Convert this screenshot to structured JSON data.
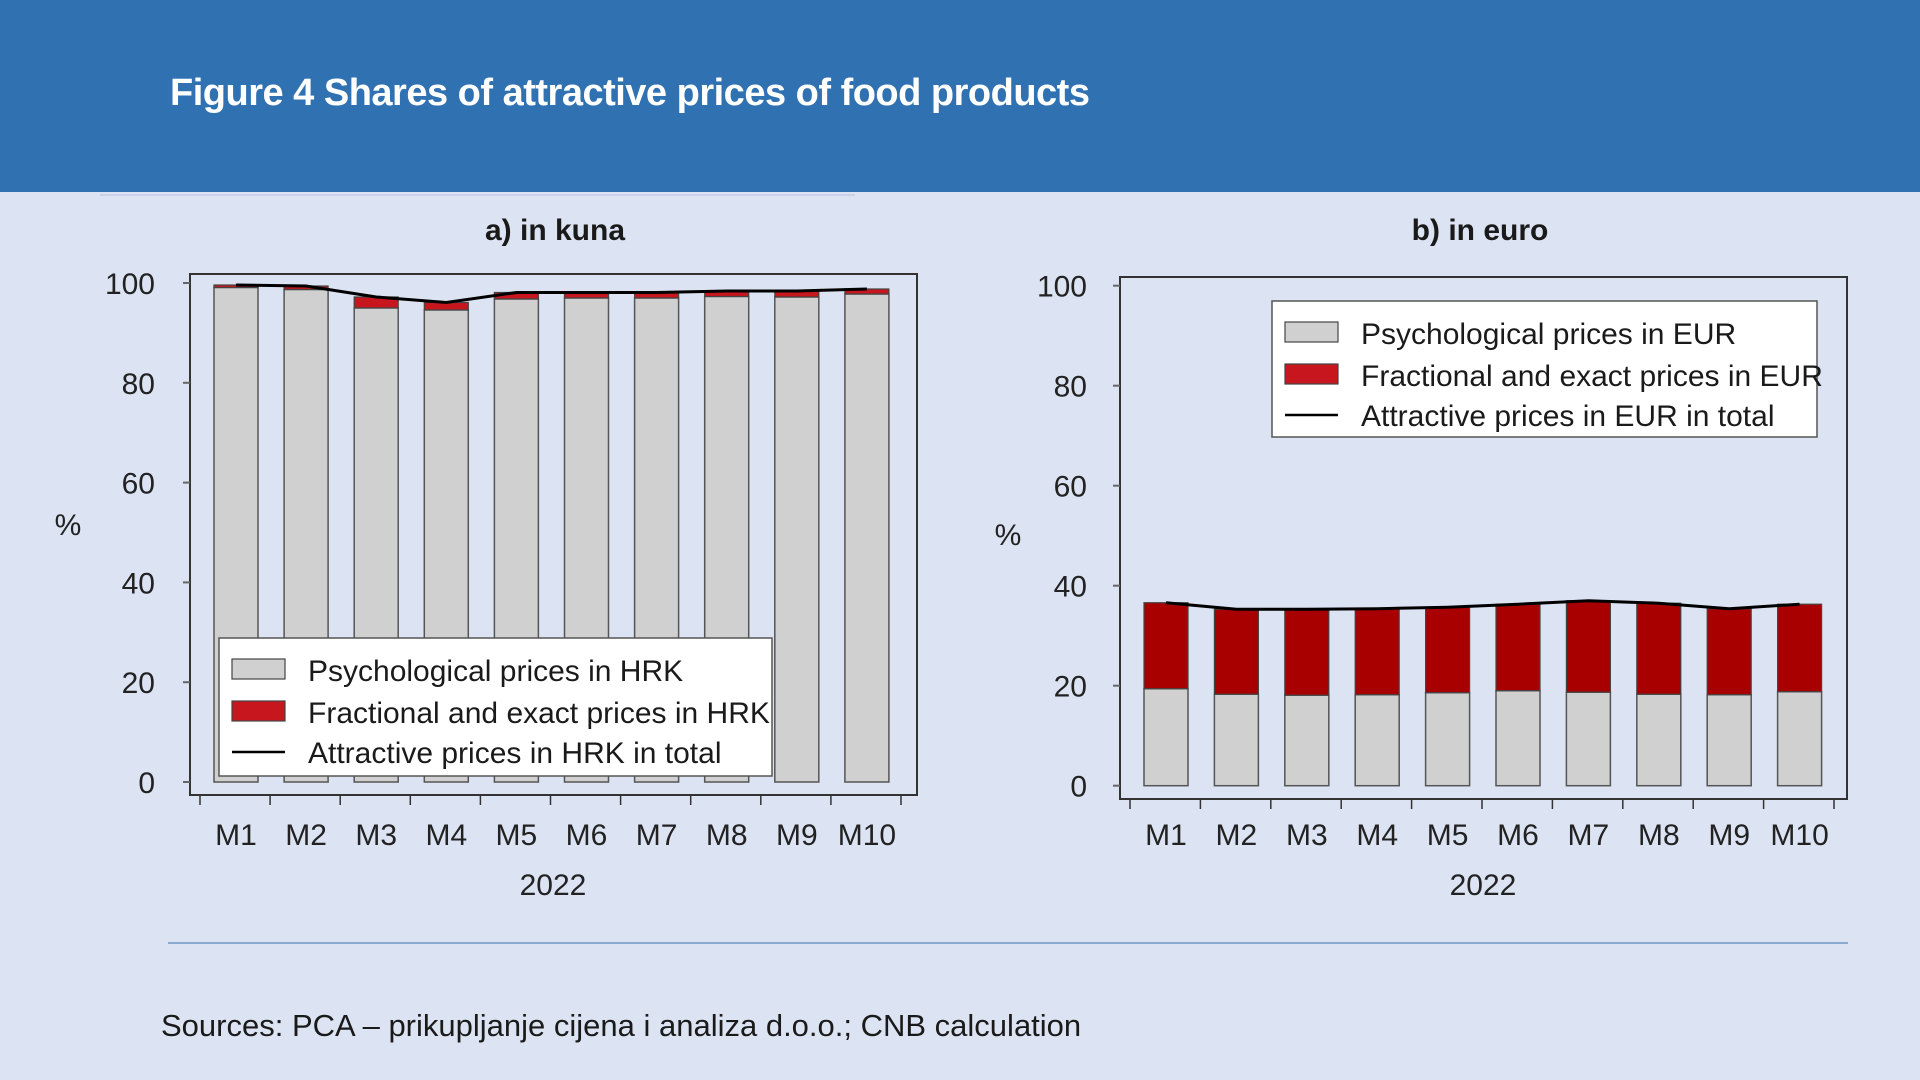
{
  "header": {
    "title": "Figure 4 Shares of attractive prices of food products"
  },
  "footer": {
    "sources": "Sources: PCA – prikupljanje cijena i analiza d.o.o.; CNB calculation"
  },
  "colors": {
    "header_bg": "#3071b2",
    "page_bg": "#dce3f2",
    "grey_bar": "#d0d0d0",
    "red_bar_kuna": "#c8161e",
    "red_bar_euro": "#a80000",
    "line": "#000000"
  },
  "chart_data": [
    {
      "type": "bar",
      "stacked": true,
      "title": "a) in kuna",
      "xlabel": "2022",
      "ylabel": "%",
      "ylim": [
        0,
        100
      ],
      "yticks": [
        0,
        20,
        40,
        60,
        80,
        100
      ],
      "categories": [
        "M1",
        "M2",
        "M3",
        "M4",
        "M5",
        "M6",
        "M7",
        "M8",
        "M9",
        "M10"
      ],
      "series": [
        {
          "name": "Psychological prices in HRK",
          "kind": "bar",
          "values": [
            99.1,
            98.7,
            95.0,
            94.6,
            96.8,
            97.0,
            97.0,
            97.3,
            97.2,
            97.8
          ]
        },
        {
          "name": "Fractional and exact prices in HRK",
          "kind": "bar",
          "values": [
            0.5,
            0.7,
            2.2,
            1.5,
            1.3,
            1.1,
            1.1,
            1.1,
            1.2,
            1.0
          ]
        },
        {
          "name": "Attractive prices in HRK in total",
          "kind": "line",
          "values": [
            99.6,
            99.4,
            97.2,
            96.1,
            98.1,
            98.1,
            98.1,
            98.4,
            98.4,
            98.8
          ]
        }
      ],
      "legend": {
        "position": "bottom-left",
        "entries": [
          "Psychological prices in HRK",
          "Fractional and exact prices in HRK",
          "Attractive prices in HRK in total"
        ]
      },
      "grid": false
    },
    {
      "type": "bar",
      "stacked": true,
      "title": "b) in euro",
      "xlabel": "2022",
      "ylabel": "%",
      "ylim": [
        0,
        100
      ],
      "yticks": [
        0,
        20,
        40,
        60,
        80,
        100
      ],
      "categories": [
        "M1",
        "M2",
        "M3",
        "M4",
        "M5",
        "M6",
        "M7",
        "M8",
        "M9",
        "M10"
      ],
      "series": [
        {
          "name": "Psychological prices in EUR",
          "kind": "bar",
          "values": [
            19.4,
            18.3,
            18.1,
            18.2,
            18.6,
            19.0,
            18.7,
            18.3,
            18.2,
            18.8
          ]
        },
        {
          "name": "Fractional and exact prices in EUR",
          "kind": "bar",
          "values": [
            17.2,
            17.0,
            17.2,
            17.2,
            17.1,
            17.3,
            18.3,
            18.2,
            17.2,
            17.5
          ]
        },
        {
          "name": "Attractive prices in EUR in total",
          "kind": "line",
          "values": [
            36.6,
            35.3,
            35.3,
            35.4,
            35.7,
            36.3,
            37.0,
            36.5,
            35.4,
            36.3
          ]
        }
      ],
      "legend": {
        "position": "top-right",
        "entries": [
          "Psychological prices in EUR",
          "Fractional and exact prices in EUR",
          "Attractive prices in EUR in total"
        ]
      },
      "grid": false
    }
  ]
}
